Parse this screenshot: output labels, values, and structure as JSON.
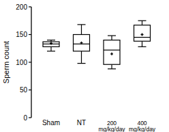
{
  "chart_data": {
    "type": "box",
    "y_label": "Sperm count",
    "categories": [
      "Sham",
      "NT",
      "200\nmg/kg/day",
      "400\nmg/kg/day"
    ],
    "min": [
      120,
      98,
      88,
      128
    ],
    "q1": [
      128,
      120,
      96,
      138
    ],
    "median": [
      133,
      133,
      122,
      145
    ],
    "q3": [
      137,
      150,
      140,
      167
    ],
    "max": [
      140,
      168,
      148,
      175
    ],
    "mean": [
      134,
      135,
      115,
      150
    ],
    "color": "#000000",
    "ylim": [
      0,
      200
    ],
    "yticks": [
      0,
      50,
      100,
      150,
      200
    ],
    "grid": false
  }
}
